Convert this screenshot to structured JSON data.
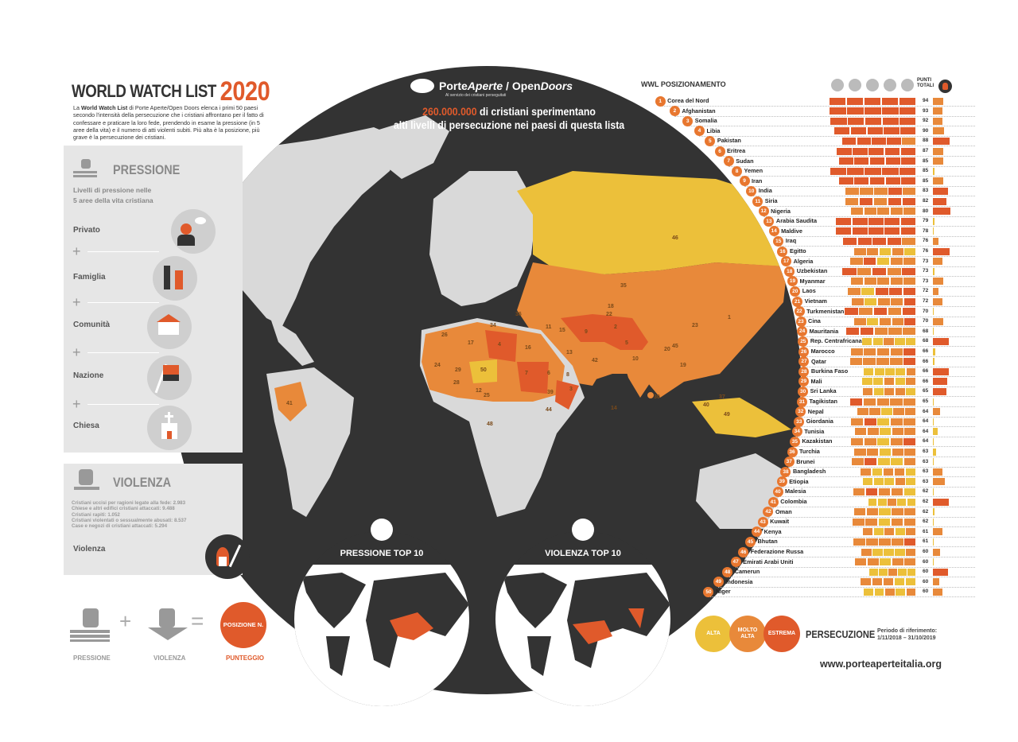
{
  "header": {
    "title": "WORLD WATCH LIST",
    "year": "2020",
    "intro_pre": "La ",
    "intro_bold": "World Watch List",
    "intro_post": " di Porte Aperte/Open Doors elenca i primi 50 paesi secondo l'intensità della persecuzione che i cristiani affrontano per il fatto di confessare e praticare la loro fede, prendendo in esame la pressione (in 5 aree della vita) e il numero di atti violenti subiti. Più alta è la posizione, più grave è la persecuzione dei cristiani."
  },
  "logo": {
    "text_a": "Porte",
    "text_b": "Aperte",
    "text_c": " / Open",
    "text_d": "Doors",
    "tagline": "Al servizio dei cristiani perseguitati"
  },
  "headline": {
    "number": "260.000.000",
    "line1": " di cristiani sperimentano",
    "line2": "alti livelli di persecuzione nei paesi di questa lista"
  },
  "pressione_panel": {
    "title": "PRESSIONE",
    "subtitle_1": "Livelli di pressione nelle",
    "subtitle_2": "5 aree della vita cristiana",
    "areas": [
      "Privato",
      "Famiglia",
      "Comunità",
      "Nazione",
      "Chiesa"
    ],
    "plus": "+"
  },
  "violenza_panel": {
    "title": "VIOLENZA",
    "stats": [
      "Cristiani uccisi per ragioni legate alla fede: 2.983",
      "Chiese e altri edifici cristiani attaccati: 9.488",
      "Cristiani rapiti: 1.052",
      "Cristiani violentati o sessualmente abusati: 8.537",
      "Case e negozi di cristiani attaccati:  5.294"
    ],
    "label": "Violenza"
  },
  "formula": {
    "pressione": "PRESSIONE",
    "violenza": "VIOLENZA",
    "plus": "+",
    "equals": "=",
    "circle": "POSIZIONE N.",
    "result": "PUNTEGGIO"
  },
  "top10": {
    "pressione": "PRESSIONE TOP 10",
    "violenza": "VIOLENZA TOP 10"
  },
  "ranking": {
    "title": "WWL POSIZIONAMENTO",
    "total_header": "PUNTI TOTALI",
    "column_icons": [
      "privato-icon",
      "famiglia-icon",
      "comunita-icon",
      "nazione-icon",
      "chiesa-icon",
      "violenza-icon"
    ],
    "countries": [
      {
        "rank": "1",
        "name": "Corea del Nord",
        "score": "94",
        "pressure": "EEEEE",
        "violence": 9.9
      },
      {
        "rank": "2",
        "name": "Afghanistan",
        "score": "93",
        "pressure": "EEEEE",
        "violence": 9.1
      },
      {
        "rank": "3",
        "name": "Somalia",
        "score": "92",
        "pressure": "EEEEE",
        "violence": 9.1
      },
      {
        "rank": "4",
        "name": "Libia",
        "score": "90",
        "pressure": "EEEEE",
        "violence": 10.6
      },
      {
        "rank": "5",
        "name": "Pakistan",
        "score": "88",
        "pressure": "EEEEM",
        "violence": 16.0
      },
      {
        "rank": "6",
        "name": "Eritrea",
        "score": "87",
        "pressure": "EEEEE",
        "violence": 9.9
      },
      {
        "rank": "7",
        "name": "Sudan",
        "score": "85",
        "pressure": "EEEEE",
        "violence": 9.9
      },
      {
        "rank": "8",
        "name": "Yemen",
        "score": "85",
        "pressure": "EEEEE",
        "violence": 1.5
      },
      {
        "rank": "9",
        "name": "Iran",
        "score": "85",
        "pressure": "EEEEE",
        "violence": 9.9
      },
      {
        "rank": "10",
        "name": "India",
        "score": "83",
        "pressure": "MMMEM",
        "violence": 14.4
      },
      {
        "rank": "11",
        "name": "Siria",
        "score": "82",
        "pressure": "MEMEE",
        "violence": 13.0
      },
      {
        "rank": "12",
        "name": "Nigeria",
        "score": "80",
        "pressure": "MMMMM",
        "violence": 16.7
      },
      {
        "rank": "13",
        "name": "Arabia Saudita",
        "score": "79",
        "pressure": "EEEEE",
        "violence": 1.5
      },
      {
        "rank": "14",
        "name": "Maldive",
        "score": "78",
        "pressure": "EEEEE",
        "violence": 0.4
      },
      {
        "rank": "15",
        "name": "Iraq",
        "score": "76",
        "pressure": "EEEEM",
        "violence": 5.3
      },
      {
        "rank": "16",
        "name": "Egitto",
        "score": "76",
        "pressure": "MMAMA",
        "violence": 16.0
      },
      {
        "rank": "17",
        "name": "Algeria",
        "score": "73",
        "pressure": "MEAMM",
        "violence": 9.1
      },
      {
        "rank": "18",
        "name": "Uzbekistan",
        "score": "73",
        "pressure": "EMEME",
        "violence": 1.5
      },
      {
        "rank": "19",
        "name": "Myanmar",
        "score": "73",
        "pressure": "MMMMM",
        "violence": 9.9
      },
      {
        "rank": "20",
        "name": "Laos",
        "score": "72",
        "pressure": "MAEEE",
        "violence": 5.3
      },
      {
        "rank": "21",
        "name": "Vietnam",
        "score": "72",
        "pressure": "MAMME",
        "violence": 9.1
      },
      {
        "rank": "22",
        "name": "Turkmenistan",
        "score": "70",
        "pressure": "EMEME",
        "violence": 0.8
      },
      {
        "rank": "23",
        "name": "Cina",
        "score": "70",
        "pressure": "MAMME",
        "violence": 9.9
      },
      {
        "rank": "24",
        "name": "Mauritania",
        "score": "68",
        "pressure": "EEMMM",
        "violence": 0.2
      },
      {
        "rank": "25",
        "name": "Rep. Centrafricana",
        "score": "68",
        "pressure": "AAMAA",
        "violence": 15.2
      },
      {
        "rank": "26",
        "name": "Marocco",
        "score": "66",
        "pressure": "MMMME",
        "violence": 2.3
      },
      {
        "rank": "27",
        "name": "Qatar",
        "score": "66",
        "pressure": "MMMME",
        "violence": 1.5
      },
      {
        "rank": "28",
        "name": "Burkina Faso",
        "score": "66",
        "pressure": "AAAAM",
        "violence": 15.2
      },
      {
        "rank": "29",
        "name": "Mali",
        "score": "66",
        "pressure": "AAMAM",
        "violence": 13.7
      },
      {
        "rank": "30",
        "name": "Sri Lanka",
        "score": "65",
        "pressure": "MAMMA",
        "violence": 13.0
      },
      {
        "rank": "31",
        "name": "Tagikistan",
        "score": "65",
        "pressure": "EMMMM",
        "violence": 0.8
      },
      {
        "rank": "32",
        "name": "Nepal",
        "score": "64",
        "pressure": "MMAMM",
        "violence": 6.8
      },
      {
        "rank": "33",
        "name": "Giordania",
        "score": "64",
        "pressure": "MEAMM",
        "violence": 0.8
      },
      {
        "rank": "34",
        "name": "Tunisia",
        "score": "64",
        "pressure": "MMAMM",
        "violence": 4.6
      },
      {
        "rank": "35",
        "name": "Kazakistan",
        "score": "64",
        "pressure": "MMAME",
        "violence": 0.8
      },
      {
        "rank": "36",
        "name": "Turchia",
        "score": "63",
        "pressure": "MMAMM",
        "violence": 3.0
      },
      {
        "rank": "37",
        "name": "Brunei",
        "score": "63",
        "pressure": "MEAAM",
        "violence": 0.4
      },
      {
        "rank": "38",
        "name": "Bangladesh",
        "score": "63",
        "pressure": "MAMMA",
        "violence": 9.1
      },
      {
        "rank": "39",
        "name": "Etiopia",
        "score": "63",
        "pressure": "AAAMA",
        "violence": 11.4
      },
      {
        "rank": "40",
        "name": "Malesia",
        "score": "62",
        "pressure": "MEMMA",
        "violence": 0.8
      },
      {
        "rank": "41",
        "name": "Colombia",
        "score": "62",
        "pressure": "AAMAA",
        "violence": 15.2
      },
      {
        "rank": "42",
        "name": "Oman",
        "score": "62",
        "pressure": "MMAMM",
        "violence": 1.5
      },
      {
        "rank": "43",
        "name": "Kuwait",
        "score": "62",
        "pressure": "MMAMM",
        "violence": 0.4
      },
      {
        "rank": "44",
        "name": "Kenya",
        "score": "61",
        "pressure": "MAMAM",
        "violence": 9.1
      },
      {
        "rank": "45",
        "name": "Bhutan",
        "score": "61",
        "pressure": "MMMME",
        "violence": 0.2
      },
      {
        "rank": "46",
        "name": "Federazione Russa",
        "score": "60",
        "pressure": "MAAAM",
        "violence": 6.8
      },
      {
        "rank": "47",
        "name": "Emirati Arabi Uniti",
        "score": "60",
        "pressure": "MMAMM",
        "violence": 0.4
      },
      {
        "rank": "48",
        "name": "Camerun",
        "score": "60",
        "pressure": "AAMAA",
        "violence": 14.4
      },
      {
        "rank": "49",
        "name": "Indonesia",
        "score": "60",
        "pressure": "MMMAA",
        "violence": 6.1
      },
      {
        "rank": "50",
        "name": "Niger",
        "score": "60",
        "pressure": "AAMAM",
        "violence": 9.1
      }
    ]
  },
  "legend": {
    "alta": "ALTA",
    "molto_alta": "MOLTO ALTA",
    "estrema": "ESTREMA",
    "title": "PERSECUZIONE",
    "period_label": "Periodo di riferimento:",
    "period": "1/11/2018 – 31/10/2019"
  },
  "url": "www.porteaperteitalia.org",
  "map_labels": [
    "46",
    "35",
    "23",
    "36",
    "11",
    "15",
    "9",
    "22",
    "18",
    "2",
    "5",
    "10",
    "13",
    "16",
    "4",
    "17",
    "26",
    "24",
    "29",
    "50",
    "28",
    "12",
    "25",
    "48",
    "7",
    "6",
    "8",
    "39",
    "3",
    "44",
    "30",
    "14",
    "41",
    "49",
    "40",
    "37",
    "19",
    "34",
    "42",
    "1",
    "20",
    "45"
  ],
  "colors": {
    "estrema": "#e05a2b",
    "molto_alta": "#e8893a",
    "alta": "#ecc03a",
    "dark": "#333333",
    "land": "#d9d9d9",
    "panel": "#e6e6e6"
  }
}
